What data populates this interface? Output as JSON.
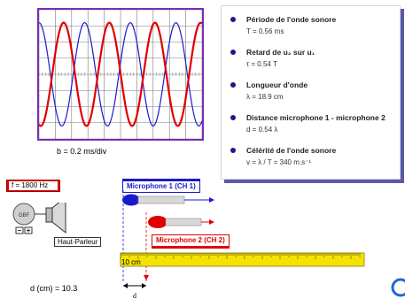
{
  "scope": {
    "timebase": "b = 0.2 ms/div",
    "colors": {
      "grid": "#7a7a7a",
      "blue": "#1a1ad0",
      "red": "#e00000",
      "frame": "#7b2db8"
    }
  },
  "info": {
    "items": [
      {
        "title": "Période de l'onde sonore",
        "value": "T = 0.56 ms"
      },
      {
        "title": "Retard de u₂ sur u₁",
        "value": "τ = 0.54 T"
      },
      {
        "title": "Longueur d'onde",
        "value": "λ = 18.9 cm"
      },
      {
        "title": "Distance microphone 1 - microphone 2",
        "value": "d = 0.54 λ"
      },
      {
        "title": "Célérité de l'onde sonore",
        "value": "v = λ / T = 340 m.s⁻¹"
      }
    ]
  },
  "generator": {
    "frequency": "f = 1800 Hz",
    "display": "GBF",
    "speaker_label": "Haut-Parleur"
  },
  "mics": {
    "mic1_label": "Microphone 1 (CH 1)",
    "mic2_label": "Microphone 2 (CH 2)"
  },
  "ruler": {
    "mark_label": "10 cm"
  },
  "distance": {
    "readout": "d (cm) = 10.3",
    "symbol": "d"
  },
  "icons": {
    "info_bullet": "bullet-dot",
    "corner": "corner-icon"
  }
}
